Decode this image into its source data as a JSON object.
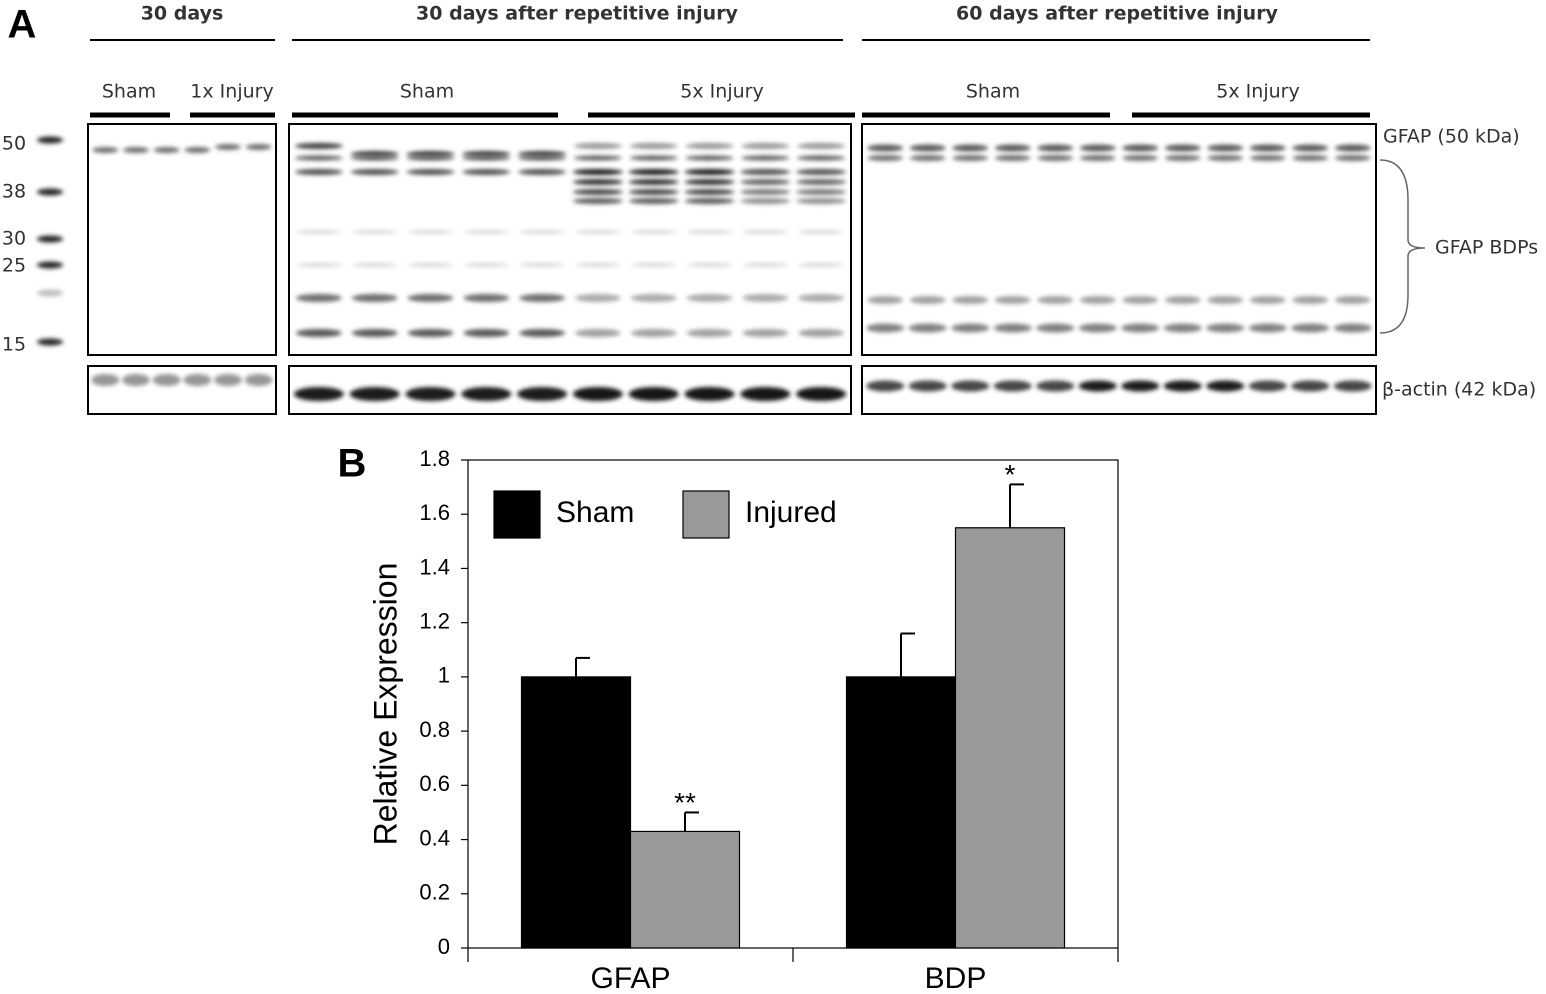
{
  "panel_a": {
    "label": "A",
    "groups": [
      {
        "title": "30 days",
        "subgroups": [
          "Sham",
          "1x Injury"
        ]
      },
      {
        "title": "30 days after repetitive injury",
        "subgroups": [
          "Sham",
          "5x Injury"
        ]
      },
      {
        "title": "60 days after repetitive injury",
        "subgroups": [
          "Sham",
          "5x Injury"
        ]
      }
    ],
    "ladder": [
      "50",
      "38",
      "30",
      "25",
      "15"
    ],
    "band_labels": {
      "gfap": "GFAP (50 kDa)",
      "bdps": "GFAP BDPs",
      "actin": "β-actin (42 kDa)"
    }
  },
  "chart_data": {
    "type": "bar",
    "panel_label": "B",
    "y_label": "Relative Expression",
    "categories": [
      "GFAP",
      "BDP"
    ],
    "series": [
      {
        "name": "Sham",
        "color": "#000000",
        "values": [
          1,
          1
        ],
        "errors": [
          0.07,
          0.16
        ]
      },
      {
        "name": "Injured",
        "color": "#999999",
        "values": [
          0.43,
          1.55
        ],
        "errors": [
          0.07,
          0.16
        ],
        "annotations": [
          "**",
          "*"
        ]
      }
    ],
    "ylim": [
      0,
      1.8
    ],
    "yticks": [
      0,
      0.2,
      0.4,
      0.6,
      0.8,
      1,
      1.2,
      1.4,
      1.6,
      1.8
    ]
  }
}
